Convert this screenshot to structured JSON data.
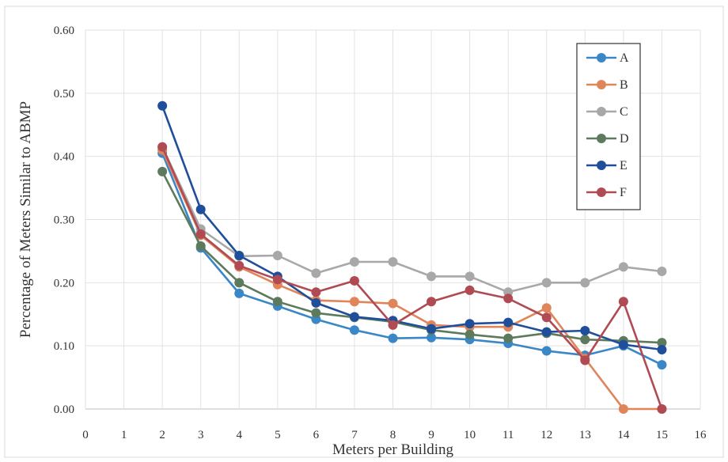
{
  "chart_data": {
    "type": "line",
    "title": "",
    "xlabel": "Meters per Building",
    "ylabel": "Percentage of Meters Similar to ABMP",
    "xlim": [
      0,
      16
    ],
    "ylim": [
      0,
      0.6
    ],
    "x_ticks": [
      "0",
      "1",
      "2",
      "3",
      "4",
      "5",
      "6",
      "7",
      "8",
      "9",
      "10",
      "11",
      "12",
      "13",
      "14",
      "15",
      "16"
    ],
    "y_ticks": [
      "0.00",
      "0.10",
      "0.20",
      "0.30",
      "0.40",
      "0.50",
      "0.60"
    ],
    "grid": true,
    "legend_position": "top-right",
    "x": [
      2,
      3,
      4,
      5,
      6,
      7,
      8,
      9,
      10,
      11,
      12,
      13,
      14,
      15
    ],
    "series": [
      {
        "name": "A",
        "color": "#3a87c8",
        "values": [
          0.405,
          0.255,
          0.183,
          0.163,
          0.142,
          0.125,
          0.112,
          0.113,
          0.11,
          0.104,
          0.092,
          0.085,
          0.1,
          0.07
        ]
      },
      {
        "name": "B",
        "color": "#e0855a",
        "values": [
          0.41,
          0.275,
          0.225,
          0.197,
          0.172,
          0.17,
          0.167,
          0.133,
          0.13,
          0.13,
          0.16,
          0.08,
          0.0,
          0.0
        ]
      },
      {
        "name": "C",
        "color": "#a8a8a8",
        "values": [
          0.415,
          0.285,
          0.242,
          0.243,
          0.215,
          0.233,
          0.233,
          0.21,
          0.21,
          0.185,
          0.2,
          0.2,
          0.225,
          0.218
        ]
      },
      {
        "name": "D",
        "color": "#5c7a5c",
        "values": [
          0.376,
          0.258,
          0.2,
          0.17,
          0.152,
          0.145,
          0.138,
          0.125,
          0.118,
          0.112,
          0.12,
          0.11,
          0.108,
          0.105
        ]
      },
      {
        "name": "E",
        "color": "#1f4e9a",
        "values": [
          0.48,
          0.316,
          0.243,
          0.21,
          0.168,
          0.146,
          0.14,
          0.127,
          0.135,
          0.137,
          0.122,
          0.124,
          0.102,
          0.094
        ]
      },
      {
        "name": "F",
        "color": "#b04b54",
        "values": [
          0.415,
          0.277,
          0.227,
          0.205,
          0.185,
          0.203,
          0.133,
          0.17,
          0.188,
          0.175,
          0.145,
          0.077,
          0.17,
          0.0
        ]
      }
    ]
  }
}
